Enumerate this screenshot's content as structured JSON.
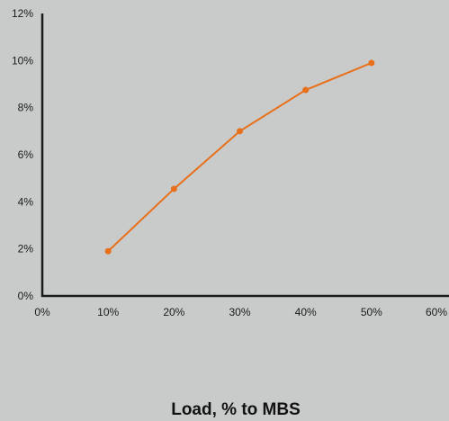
{
  "chart_data": {
    "type": "line",
    "xlabel": "Load, % to MBS",
    "ylabel": "",
    "x_ticks": [
      "0%",
      "10%",
      "20%",
      "30%",
      "40%",
      "50%",
      "60%"
    ],
    "y_ticks": [
      "0%",
      "2%",
      "4%",
      "6%",
      "8%",
      "10%",
      "12%"
    ],
    "xlim": [
      0,
      60
    ],
    "ylim": [
      0,
      12
    ],
    "grid": false,
    "series": [
      {
        "x": [
          10,
          20,
          30,
          40,
          50
        ],
        "y": [
          1.9,
          4.55,
          7.0,
          8.75,
          9.9
        ]
      }
    ],
    "colors": {
      "line": "#e8701a",
      "axis": "#1a1a1a",
      "background": "#c9cbca"
    }
  }
}
